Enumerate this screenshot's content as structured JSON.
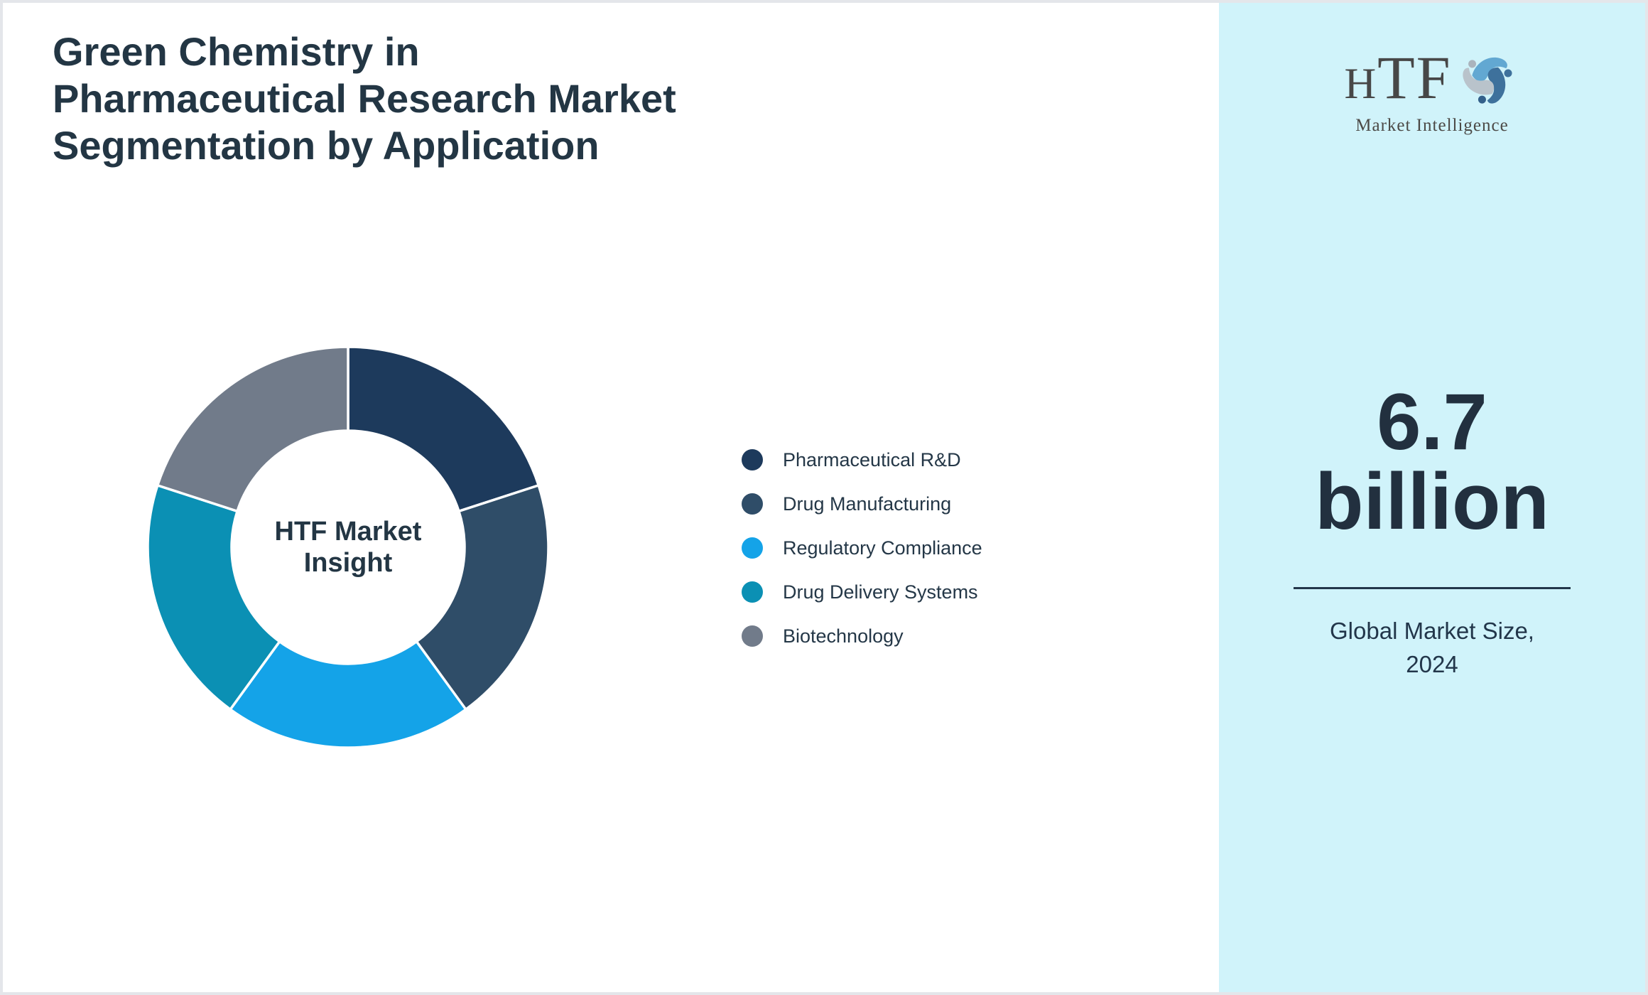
{
  "page": {
    "background": "#ffffff",
    "border_color": "#e4e6ea",
    "text_dark": "#233644"
  },
  "header": {
    "title": "Green Chemistry in\nPharmaceutical Research Market\nSegmentation by Application"
  },
  "chart_data": {
    "type": "pie",
    "subtype": "donut",
    "title": "Green Chemistry in Pharmaceutical Research Market Segmentation by Application",
    "center_label": "HTF Market Insight",
    "categories": [
      "Pharmaceutical R&D",
      "Drug Manufacturing",
      "Regulatory Compliance",
      "Drug Delivery Systems",
      "Biotechnology"
    ],
    "values": [
      20,
      20,
      20,
      20,
      20
    ],
    "unit": "%",
    "colors": [
      "#1d3a5c",
      "#2f4d68",
      "#14a3e8",
      "#0b90b4",
      "#717b8a"
    ],
    "start_angle_deg": 0,
    "direction": "clockwise",
    "inner_radius_ratio": 0.58,
    "slice_gap_color": "#ffffff",
    "legend_position": "right"
  },
  "legend": {
    "items": [
      {
        "label": "Pharmaceutical R&D",
        "color": "#1d3a5c"
      },
      {
        "label": "Drug Manufacturing",
        "color": "#2f4d68"
      },
      {
        "label": "Regulatory Compliance",
        "color": "#14a3e8"
      },
      {
        "label": "Drug Delivery Systems",
        "color": "#0b90b4"
      },
      {
        "label": "Biotechnology",
        "color": "#717b8a"
      }
    ]
  },
  "sidebar": {
    "background": "#d0f3fa",
    "logo": {
      "text": "HTF",
      "subtext": "Market Intelligence",
      "icon": "htf-swirl-people-icon",
      "icon_colors": [
        "#62a8d2",
        "#3e719c",
        "#b9c3cb"
      ]
    },
    "market_size": {
      "value": "6.7",
      "unit": "billion",
      "caption": "Global Market Size,\n2024"
    },
    "divider_color": "#22364a"
  }
}
